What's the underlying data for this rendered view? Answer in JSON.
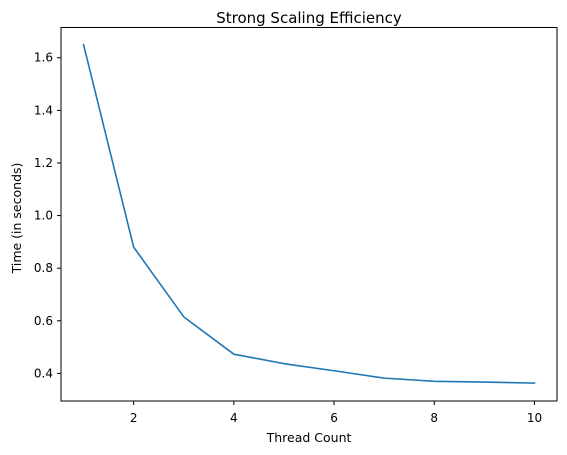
{
  "chart_data": {
    "type": "line",
    "title": "Strong Scaling Efficiency",
    "xlabel": "Thread Count",
    "ylabel": "Time (in seconds)",
    "xlim": [
      0.55,
      10.45
    ],
    "ylim": [
      0.295,
      1.715
    ],
    "x_ticks": [
      2,
      4,
      6,
      8,
      10
    ],
    "x_tick_labels": [
      "2",
      "4",
      "6",
      "8",
      "10"
    ],
    "y_ticks": [
      0.4,
      0.6,
      0.8,
      1.0,
      1.2,
      1.4,
      1.6
    ],
    "y_tick_labels": [
      "0.4",
      "0.6",
      "0.8",
      "1.0",
      "1.2",
      "1.4",
      "1.6"
    ],
    "grid": false,
    "legend": "none",
    "line_color": "#1f77b4",
    "series": [
      {
        "x": [
          1,
          2,
          3,
          4,
          5,
          6,
          7,
          8,
          9,
          10
        ],
        "values": [
          1.65,
          0.88,
          0.615,
          0.473,
          0.437,
          0.41,
          0.382,
          0.37,
          0.367,
          0.363
        ]
      }
    ]
  }
}
